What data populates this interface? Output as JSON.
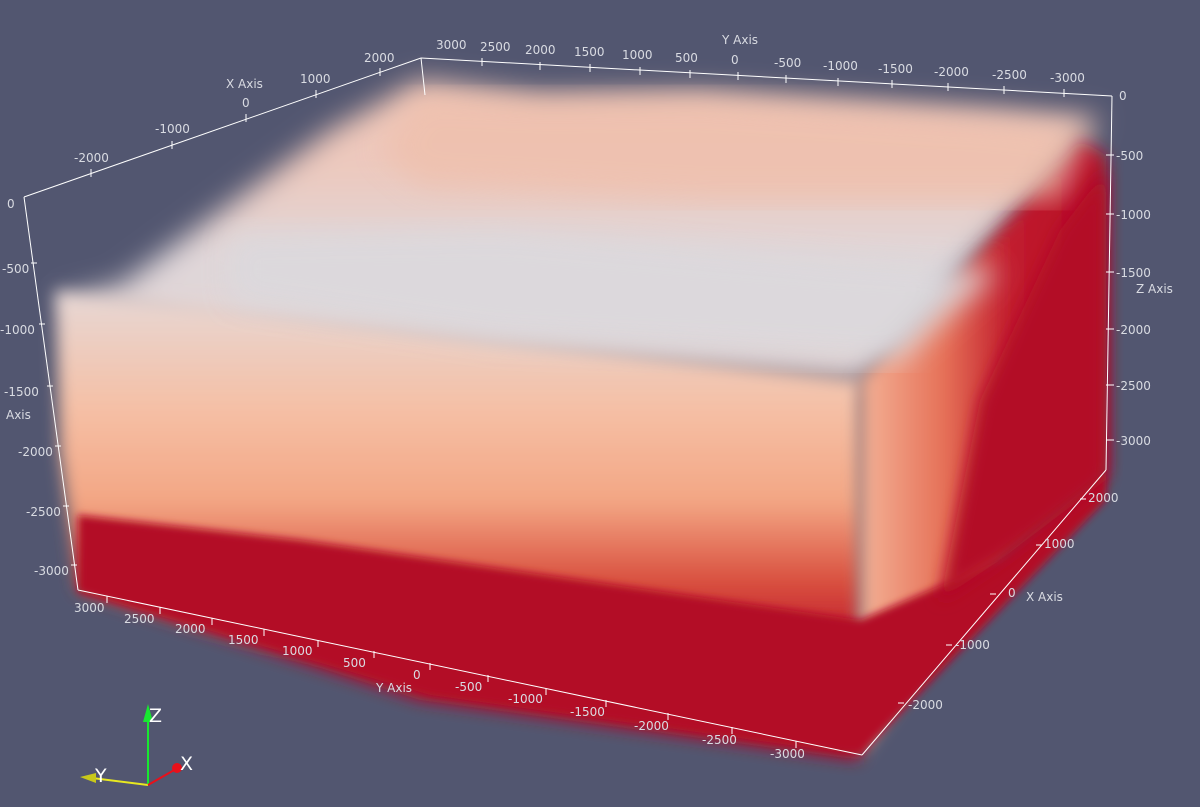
{
  "axes": {
    "x_title": "X Axis",
    "y_title": "Y Axis",
    "z_title": "Z Axis",
    "left_z_title_fragment": "Axis",
    "top_x_ticks": [
      "-2000",
      "-1000",
      "0",
      "1000",
      "2000"
    ],
    "top_y_ticks": [
      "3000",
      "2500",
      "2000",
      "1500",
      "1000",
      "500",
      "0",
      "-500",
      "-1000",
      "-1500",
      "-2000",
      "-2500",
      "-3000"
    ],
    "left_z_ticks": [
      "0",
      "-500",
      "-1000",
      "-1500",
      "-2000",
      "-2500",
      "-3000"
    ],
    "right_z_ticks": [
      "0",
      "-500",
      "-1000",
      "-1500",
      "-2000",
      "-2500",
      "-3000"
    ],
    "bottom_y_ticks": [
      "3000",
      "2500",
      "2000",
      "1500",
      "1000",
      "500",
      "0",
      "-500",
      "-1000",
      "-1500",
      "-2000",
      "-2500",
      "-3000"
    ],
    "right_x_ticks": [
      "2000",
      "1000",
      "0",
      "-1000",
      "-2000"
    ]
  },
  "orientation": {
    "x": "X",
    "y": "Y",
    "z": "Z",
    "x_color": "#e8101a",
    "y_color": "#e8e820",
    "z_color": "#18e830"
  },
  "colors": {
    "background": "#525670",
    "volume_deep": "#b30826",
    "volume_mid": "#f2a888",
    "volume_top": "#ddd9dd"
  }
}
